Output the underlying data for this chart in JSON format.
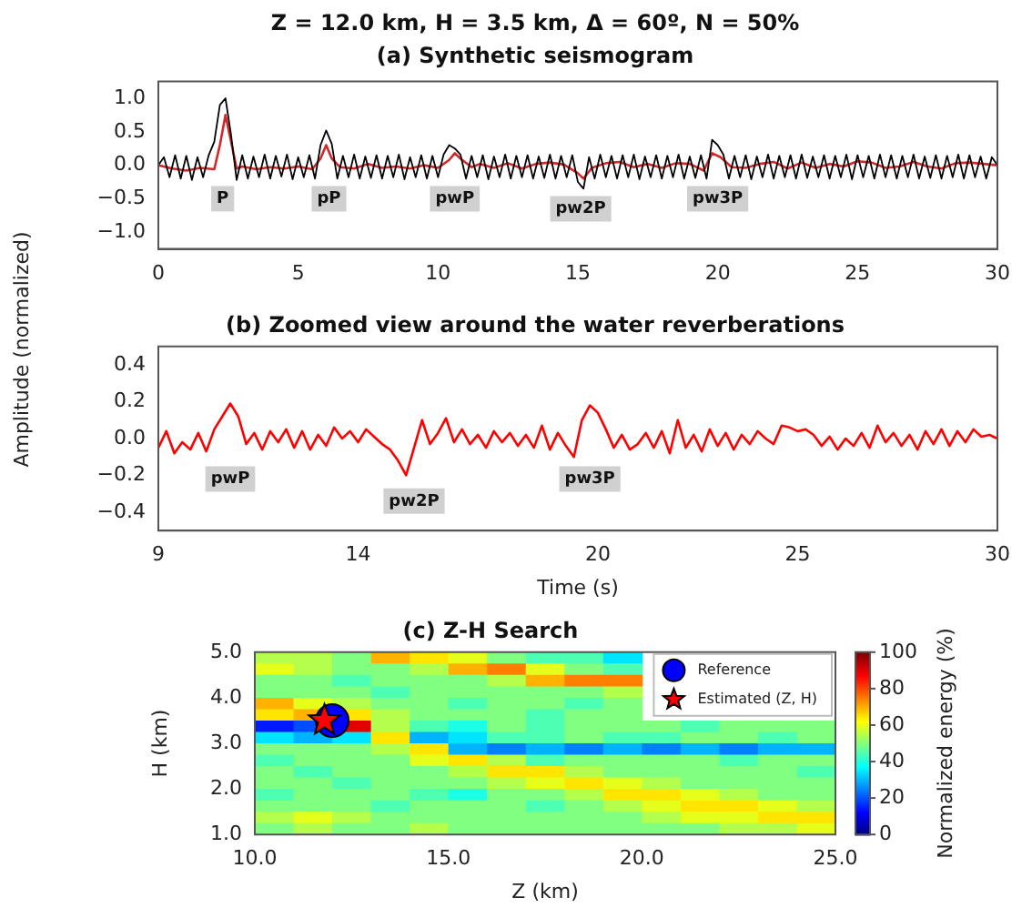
{
  "chart_data": [
    {
      "type": "line",
      "title": "Z = 12.0 km, H = 3.5 km, Δ = 60º, N = 50%",
      "subtitle": "(a) Synthetic seismogram",
      "ylabel": "Amplitude (normalized)",
      "xlim": [
        0,
        30
      ],
      "xticks": [
        0,
        5,
        10,
        15,
        20,
        25,
        30
      ],
      "ylim": [
        -1.25,
        1.25
      ],
      "yticks": [
        {
          "value": -1,
          "label": "−1.0"
        },
        {
          "value": -0.5,
          "label": "−0.5"
        },
        {
          "value": 0,
          "label": "0.0"
        },
        {
          "value": 0.5,
          "label": "0.5"
        },
        {
          "value": 1,
          "label": "1.0"
        }
      ],
      "series": [
        {
          "color": "#000000",
          "x": [
            0,
            0.2,
            0.4,
            0.6,
            0.8,
            1,
            1.2,
            1.4,
            1.6,
            1.8,
            2,
            2.2,
            2.4,
            2.6,
            2.8,
            3,
            3.2,
            3.4,
            3.6,
            3.8,
            4,
            4.2,
            4.4,
            4.6,
            4.8,
            5,
            5.2,
            5.4,
            5.6,
            5.8,
            6,
            6.2,
            6.4,
            6.6,
            6.8,
            7,
            7.2,
            7.4,
            7.6,
            7.8,
            8,
            8.2,
            8.4,
            8.6,
            8.8,
            9,
            9.2,
            9.4,
            9.6,
            9.8,
            10,
            10.2,
            10.4,
            10.6,
            10.8,
            11,
            11.2,
            11.4,
            11.6,
            11.8,
            12,
            12.2,
            12.4,
            12.6,
            12.8,
            13,
            13.2,
            13.4,
            13.6,
            13.8,
            14,
            14.2,
            14.4,
            14.6,
            14.8,
            15,
            15.2,
            15.4,
            15.6,
            15.8,
            16,
            16.2,
            16.4,
            16.6,
            16.8,
            17,
            17.2,
            17.4,
            17.6,
            17.8,
            18,
            18.2,
            18.4,
            18.6,
            18.8,
            19,
            19.2,
            19.4,
            19.6,
            19.8,
            20,
            20.2,
            20.4,
            20.6,
            20.8,
            21,
            21.2,
            21.4,
            21.6,
            21.8,
            22,
            22.2,
            22.4,
            22.6,
            22.8,
            23,
            23.2,
            23.4,
            23.6,
            23.8,
            24,
            24.2,
            24.4,
            24.6,
            24.8,
            25,
            25.2,
            25.4,
            25.6,
            25.8,
            26,
            26.2,
            26.4,
            26.6,
            26.8,
            27,
            27.2,
            27.4,
            27.6,
            27.8,
            28,
            28.2,
            28.4,
            28.6,
            28.8,
            29,
            29.2,
            29.4,
            29.6,
            29.8,
            30
          ],
          "values": [
            0,
            0.12,
            -0.18,
            0.15,
            -0.2,
            0.14,
            -0.22,
            0.12,
            -0.18,
            0.15,
            0.35,
            0.9,
            1.0,
            0.45,
            -0.22,
            0.15,
            -0.2,
            0.13,
            -0.18,
            0.16,
            -0.2,
            0.14,
            -0.17,
            0.16,
            -0.21,
            0.12,
            -0.18,
            0.15,
            -0.2,
            0.3,
            0.52,
            0.32,
            -0.2,
            0.14,
            -0.18,
            0.16,
            -0.2,
            0.13,
            -0.19,
            0.15,
            -0.2,
            0.14,
            -0.18,
            0.16,
            -0.21,
            0.12,
            -0.18,
            0.15,
            -0.2,
            0.14,
            -0.18,
            0.16,
            0.3,
            0.25,
            0.16,
            -0.2,
            0.14,
            -0.18,
            0.15,
            -0.21,
            0.13,
            -0.18,
            0.16,
            -0.2,
            0.14,
            -0.18,
            0.15,
            -0.2,
            0.13,
            -0.19,
            0.16,
            -0.2,
            0.14,
            -0.18,
            0.15,
            -0.25,
            -0.35,
            0.12,
            -0.2,
            0.16,
            -0.18,
            0.14,
            -0.2,
            0.15,
            -0.18,
            0.16,
            -0.21,
            0.13,
            -0.18,
            0.15,
            -0.2,
            0.14,
            -0.18,
            0.16,
            -0.2,
            0.13,
            -0.19,
            0.15,
            -0.2,
            0.38,
            0.3,
            0.16,
            -0.2,
            0.14,
            -0.18,
            0.15,
            -0.21,
            0.13,
            -0.18,
            0.16,
            -0.2,
            0.14,
            -0.18,
            0.15,
            -0.2,
            0.16,
            -0.19,
            0.13,
            -0.18,
            0.15,
            -0.2,
            0.14,
            -0.18,
            0.16,
            -0.21,
            0.15,
            -0.18,
            0.14,
            -0.2,
            0.16,
            -0.18,
            0.15,
            -0.2,
            0.14,
            -0.18,
            0.16,
            -0.2,
            0.13,
            -0.19,
            0.15,
            -0.2,
            0.14,
            -0.18,
            0.16,
            -0.2,
            0.15,
            -0.18,
            0.13,
            -0.2,
            0.12,
            0
          ]
        },
        {
          "color": "#d62728",
          "x": [
            0,
            0.5,
            1,
            1.5,
            2,
            2.2,
            2.4,
            2.6,
            2.8,
            3,
            3.5,
            4,
            4.5,
            5,
            5.5,
            5.8,
            6,
            6.2,
            6.5,
            7,
            7.5,
            8,
            8.5,
            9,
            9.5,
            10,
            10.4,
            10.6,
            10.8,
            11.2,
            11.5,
            12,
            12.5,
            13,
            13.5,
            14,
            14.5,
            15,
            15.2,
            15.5,
            16,
            16.5,
            17,
            17.5,
            18,
            18.5,
            19,
            19.5,
            19.8,
            20.1,
            20.5,
            21,
            21.5,
            22,
            22.5,
            23,
            23.5,
            24,
            24.5,
            25,
            25.5,
            26,
            26.5,
            27,
            27.5,
            28,
            28.5,
            29,
            29.5,
            30
          ],
          "values": [
            0,
            -0.05,
            -0.08,
            -0.04,
            -0.06,
            0.3,
            0.75,
            0.35,
            -0.05,
            -0.02,
            -0.06,
            -0.03,
            -0.05,
            -0.02,
            -0.06,
            0.1,
            0.3,
            0.1,
            -0.03,
            -0.05,
            0.02,
            -0.04,
            -0.02,
            -0.05,
            0,
            -0.04,
            0.08,
            0.18,
            0.1,
            -0.03,
            0.02,
            -0.04,
            0.03,
            -0.05,
            0.02,
            0.04,
            0.01,
            -0.12,
            -0.2,
            -0.04,
            0.03,
            0.05,
            -0.03,
            0.02,
            -0.04,
            0.03,
            0.02,
            -0.08,
            0.18,
            0.12,
            -0.03,
            -0.04,
            0.02,
            0.05,
            -0.05,
            0.04,
            -0.04,
            0.02,
            -0.02,
            0.06,
            0.04,
            -0.04,
            -0.02,
            0.05,
            -0.02,
            -0.05,
            0.03,
            0.04,
            0.02,
            0
          ]
        }
      ],
      "annotations": [
        {
          "text": "P",
          "x": 2.3,
          "y": -0.5
        },
        {
          "text": "pP",
          "x": 6.1,
          "y": -0.5
        },
        {
          "text": "pwP",
          "x": 10.6,
          "y": -0.5
        },
        {
          "text": "pw2P",
          "x": 15.1,
          "y": -0.65
        },
        {
          "text": "pw3P",
          "x": 20.0,
          "y": -0.5
        }
      ]
    },
    {
      "type": "line",
      "title": "(b) Zoomed view around the water reverberations",
      "xlabel": "Time (s)",
      "xlim": [
        9,
        30
      ],
      "xticks": [
        9,
        14,
        20,
        25,
        30
      ],
      "ylim": [
        -0.5,
        0.5
      ],
      "yticks": [
        {
          "value": -0.4,
          "label": "−0.4"
        },
        {
          "value": -0.2,
          "label": "−0.2"
        },
        {
          "value": 0,
          "label": "0.0"
        },
        {
          "value": 0.2,
          "label": "0.2"
        },
        {
          "value": 0.4,
          "label": "0.4"
        }
      ],
      "series": [
        {
          "color": "#ff0000",
          "x": [
            9,
            9.2,
            9.4,
            9.6,
            9.8,
            10,
            10.2,
            10.4,
            10.6,
            10.8,
            11,
            11.2,
            11.4,
            11.6,
            11.8,
            12,
            12.2,
            12.4,
            12.6,
            12.8,
            13,
            13.2,
            13.4,
            13.6,
            13.8,
            14,
            14.2,
            14.4,
            14.6,
            14.8,
            15,
            15.2,
            15.4,
            15.6,
            15.8,
            16,
            16.2,
            16.4,
            16.6,
            16.8,
            17,
            17.2,
            17.4,
            17.6,
            17.8,
            18,
            18.2,
            18.4,
            18.6,
            18.8,
            19,
            19.2,
            19.4,
            19.6,
            19.8,
            20,
            20.2,
            20.4,
            20.6,
            20.8,
            21,
            21.2,
            21.4,
            21.6,
            21.8,
            22,
            22.2,
            22.4,
            22.6,
            22.8,
            23,
            23.2,
            23.4,
            23.6,
            23.8,
            24,
            24.2,
            24.4,
            24.6,
            24.8,
            25,
            25.2,
            25.4,
            25.6,
            25.8,
            26,
            26.2,
            26.4,
            26.6,
            26.8,
            27,
            27.2,
            27.4,
            27.6,
            27.8,
            28,
            28.2,
            28.4,
            28.6,
            28.8,
            29,
            29.2,
            29.4,
            29.6,
            29.8,
            30
          ],
          "values": [
            -0.05,
            0.04,
            -0.08,
            -0.02,
            -0.06,
            0.03,
            -0.07,
            0.05,
            0.12,
            0.19,
            0.12,
            -0.03,
            0.03,
            -0.06,
            0.04,
            -0.02,
            0.05,
            -0.05,
            0.04,
            -0.06,
            0.02,
            -0.04,
            0.06,
            0,
            0.04,
            -0.02,
            0.05,
            0.01,
            -0.03,
            -0.06,
            -0.12,
            -0.2,
            -0.05,
            0.1,
            -0.03,
            0.03,
            0.11,
            -0.02,
            0.05,
            -0.03,
            0.02,
            -0.05,
            0.04,
            -0.02,
            0.03,
            -0.04,
            0.02,
            -0.05,
            0.07,
            -0.06,
            0.03,
            -0.04,
            -0.1,
            0.1,
            0.18,
            0.14,
            0.05,
            -0.05,
            0.02,
            -0.06,
            -0.03,
            0.03,
            -0.05,
            0.04,
            -0.08,
            0.1,
            -0.05,
            0.02,
            -0.07,
            0.05,
            -0.04,
            0.03,
            -0.06,
            0.02,
            -0.03,
            0.04,
            0,
            -0.03,
            0.07,
            0.06,
            0.04,
            0.05,
            0.02,
            -0.04,
            0.01,
            -0.06,
            0,
            -0.04,
            0.03,
            -0.05,
            0.07,
            -0.02,
            0.03,
            -0.04,
            0.02,
            -0.06,
            0.04,
            -0.03,
            0.05,
            -0.04,
            0.04,
            -0.02,
            0.05,
            0.01,
            0.02,
            0
          ]
        }
      ],
      "annotations": [
        {
          "text": "pwP",
          "x": 10.8,
          "y": -0.22
        },
        {
          "text": "pw2P",
          "x": 15.4,
          "y": -0.34
        },
        {
          "text": "pw3P",
          "x": 19.8,
          "y": -0.22
        }
      ]
    },
    {
      "type": "heatmap",
      "title": "(c) Z-H Search",
      "xlabel": "Z (km)",
      "ylabel": "H (km)",
      "clabel": "Normalized energy (%)",
      "xlim": [
        10,
        25
      ],
      "xticks": [
        {
          "value": 10,
          "label": "10.0"
        },
        {
          "value": 15,
          "label": "15.0"
        },
        {
          "value": 20,
          "label": "20.0"
        },
        {
          "value": 25,
          "label": "25.0"
        }
      ],
      "ylim": [
        1,
        5
      ],
      "yticks": [
        {
          "value": 1,
          "label": "1.0"
        },
        {
          "value": 2,
          "label": "2.0"
        },
        {
          "value": 3,
          "label": "3.0"
        },
        {
          "value": 4,
          "label": "4.0"
        },
        {
          "value": 5,
          "label": "5.0"
        }
      ],
      "clim": [
        0,
        100
      ],
      "cticks": [
        0,
        20,
        40,
        60,
        80,
        100
      ],
      "cells": [
        [
          55,
          55,
          50,
          70,
          65,
          60,
          50,
          45,
          45,
          35,
          null,
          null,
          null,
          null,
          null
        ],
        [
          60,
          55,
          50,
          50,
          55,
          70,
          75,
          60,
          50,
          45,
          null,
          null,
          null,
          null,
          null
        ],
        [
          50,
          50,
          45,
          50,
          50,
          50,
          55,
          70,
          75,
          75,
          null,
          null,
          null,
          null,
          null
        ],
        [
          50,
          50,
          50,
          45,
          50,
          50,
          50,
          50,
          50,
          55,
          null,
          null,
          null,
          null,
          null
        ],
        [
          70,
          60,
          55,
          50,
          50,
          45,
          50,
          50,
          45,
          50,
          null,
          null,
          null,
          null,
          null
        ],
        [
          65,
          70,
          65,
          55,
          50,
          50,
          50,
          45,
          50,
          50,
          null,
          null,
          null,
          null,
          null
        ],
        [
          15,
          20,
          90,
          55,
          45,
          40,
          50,
          45,
          50,
          50,
          50,
          45,
          50,
          50,
          50
        ],
        [
          35,
          30,
          35,
          65,
          30,
          35,
          45,
          45,
          50,
          45,
          45,
          50,
          50,
          45,
          50
        ],
        [
          50,
          50,
          50,
          55,
          65,
          30,
          25,
          30,
          25,
          30,
          25,
          30,
          25,
          30,
          30
        ],
        [
          45,
          50,
          50,
          50,
          60,
          65,
          55,
          45,
          50,
          50,
          50,
          50,
          45,
          50,
          50
        ],
        [
          50,
          45,
          50,
          50,
          50,
          55,
          65,
          65,
          55,
          50,
          50,
          50,
          50,
          50,
          45
        ],
        [
          50,
          50,
          45,
          50,
          50,
          50,
          55,
          60,
          65,
          60,
          55,
          50,
          50,
          50,
          50
        ],
        [
          45,
          50,
          50,
          50,
          45,
          40,
          50,
          50,
          55,
          65,
          65,
          60,
          55,
          50,
          50
        ],
        [
          50,
          50,
          50,
          45,
          50,
          50,
          50,
          45,
          50,
          55,
          60,
          65,
          65,
          60,
          55
        ],
        [
          55,
          60,
          55,
          50,
          50,
          50,
          50,
          50,
          50,
          50,
          55,
          60,
          60,
          65,
          65
        ],
        [
          50,
          55,
          50,
          50,
          55,
          50,
          50,
          50,
          50,
          50,
          50,
          50,
          55,
          55,
          60
        ]
      ],
      "series": [
        {
          "type": "scatter",
          "name": "Reference",
          "color": "#0000ff",
          "marker": "circle",
          "x": [
            12.0
          ],
          "values": [
            3.5
          ]
        },
        {
          "type": "scatter",
          "name": "Estimated (Z, H)",
          "color": "#ff0000",
          "marker": "star",
          "x": [
            11.8
          ],
          "values": [
            3.5
          ]
        }
      ],
      "legend": "top right"
    }
  ]
}
